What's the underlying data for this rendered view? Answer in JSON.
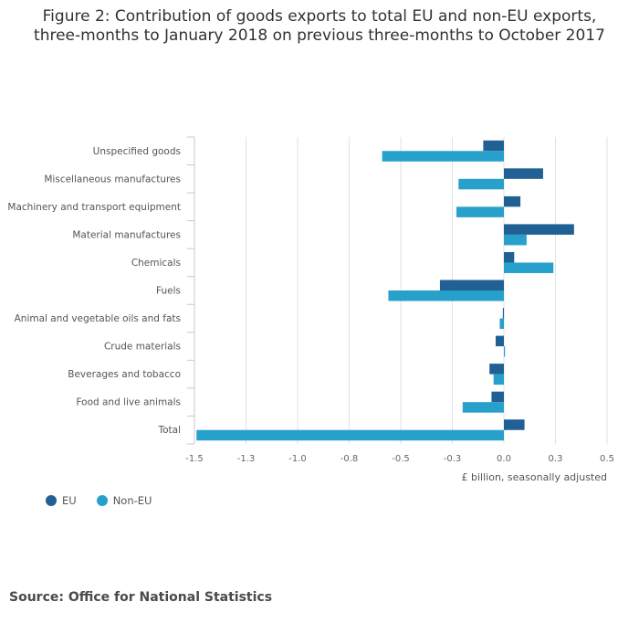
{
  "title_line1": "Figure 2: Contribution of goods exports to total EU and non-EU exports,",
  "title_line2": "three-months to January 2018 on previous three-months to October 2017",
  "source": "Source: Office for National Statistics",
  "legend": [
    {
      "name": "EU",
      "color": "#206095"
    },
    {
      "name": "Non-EU",
      "color": "#27a0cc"
    }
  ],
  "chart_data": {
    "type": "bar",
    "orientation": "horizontal",
    "categories": [
      "Unspecified goods",
      "Miscellaneous manufactures",
      "Machinery and transport equipment",
      "Material manufactures",
      "Chemicals",
      "Fuels",
      "Animal and vegetable oils and fats",
      "Crude materials",
      "Beverages and tobacco",
      "Food and live animals",
      "Total"
    ],
    "series": [
      {
        "name": "EU",
        "color": "#206095",
        "values": [
          -0.1,
          0.19,
          0.08,
          0.34,
          0.05,
          -0.31,
          -0.005,
          -0.04,
          -0.07,
          -0.06,
          0.1
        ]
      },
      {
        "name": "Non-EU",
        "color": "#27a0cc",
        "values": [
          -0.59,
          -0.22,
          -0.23,
          0.11,
          0.24,
          -0.56,
          -0.02,
          0.005,
          -0.05,
          -0.2,
          -1.49
        ]
      }
    ],
    "xlabel": "£ billion, seasonally adjusted",
    "xticks": [
      "-1.5",
      "-1.3",
      "-1.0",
      "-0.8",
      "-0.5",
      "-0.3",
      "0.0",
      "0.3",
      "0.5"
    ],
    "xlim": [
      -1.5,
      0.6
    ],
    "grid": "vertical",
    "legend_position": "bottom-left"
  }
}
